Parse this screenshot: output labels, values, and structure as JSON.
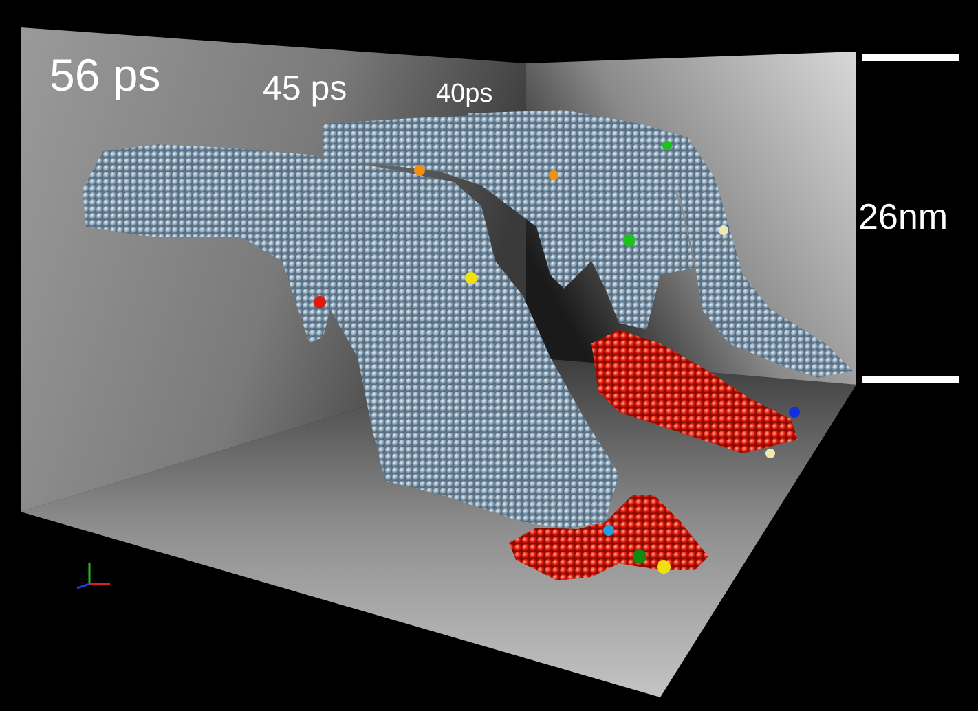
{
  "time_labels": [
    "56 ps",
    "45 ps",
    "40ps"
  ],
  "scale_bar": {
    "label": "26nm"
  }
}
